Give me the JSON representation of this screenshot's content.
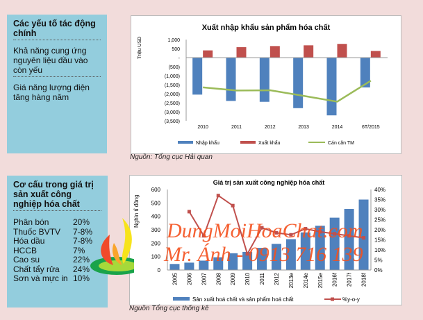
{
  "panel1": {
    "title": "Các yếu tố tác động chính",
    "items": [
      "Khả năng cung ứng nguyên liệu đầu vào còn yếu",
      "Giá năng lượng điện tăng hàng năm"
    ]
  },
  "panel2": {
    "title": "Cơ cấu trong giá trị sản xuất công nghiệp hóa chất",
    "rows": [
      {
        "label": "Phân bón",
        "value": "20%"
      },
      {
        "label": "Thuốc BVTV",
        "value": "7-8%"
      },
      {
        "label": "Hóa dầu",
        "value": "7-8%"
      },
      {
        "label": "HCCB",
        "value": "7%"
      },
      {
        "label": "Cao su",
        "value": "22%"
      },
      {
        "label": "Chất tẩy rửa",
        "value": "24%"
      },
      {
        "label": "Sơn và mực in",
        "value": "10%"
      }
    ]
  },
  "source1": "Nguồn: Tổng cục Hải quan",
  "source2": "Nguồn Tổng cục thống kê",
  "watermark": {
    "line1": "DungMoiHoaChat.com",
    "line2": "Mr. Ánh - 0913 716 139"
  },
  "chart_data": [
    {
      "type": "bar",
      "title": "Xuất nhập khẩu sản phẩm hóa chất",
      "ylabel": "Triệu USD",
      "ylim": [
        -3500,
        1000
      ],
      "yticks": [
        "1,000",
        "500",
        "-",
        "(500)",
        "(1,000)",
        "(1,500)",
        "(2,000)",
        "(2,500)",
        "(3,000)",
        "(3,500)"
      ],
      "categories": [
        "2010",
        "2011",
        "2012",
        "2013",
        "2014",
        "6T/2015"
      ],
      "series": [
        {
          "name": "Nhập khẩu",
          "kind": "bar",
          "color": "#4f81bd",
          "values": [
            -2050,
            -2400,
            -2450,
            -2800,
            -3200,
            -1650
          ]
        },
        {
          "name": "Xuất khẩu",
          "kind": "bar",
          "color": "#c0504d",
          "values": [
            400,
            580,
            640,
            680,
            760,
            370
          ]
        },
        {
          "name": "Cán cân TM",
          "kind": "line",
          "color": "#9bbb59",
          "values": [
            -1650,
            -1820,
            -1810,
            -2120,
            -2440,
            -1280
          ]
        }
      ],
      "legend": "bottom"
    },
    {
      "type": "bar",
      "title": "Giá trị sản xuất công nghiệp hóa chất",
      "ylabel": "Nghìn tỉ đồng",
      "ylim": [
        0,
        600
      ],
      "y2lim": [
        0,
        40
      ],
      "yticks": [
        "0",
        "100",
        "200",
        "300",
        "400",
        "500",
        "600"
      ],
      "y2ticks": [
        "0%",
        "5%",
        "10%",
        "15%",
        "20%",
        "25%",
        "30%",
        "35%",
        "40%"
      ],
      "categories": [
        "2005",
        "2006",
        "2007",
        "2008",
        "2009",
        "2010",
        "2011",
        "2012",
        "2013e",
        "2014e",
        "2015e",
        "2016f",
        "2017f",
        "2018f"
      ],
      "series": [
        {
          "name": "Sản xuất hoá chất và sản phẩm hoá chất",
          "kind": "bar",
          "color": "#4f81bd",
          "values": [
            45,
            55,
            70,
            95,
            125,
            135,
            165,
            195,
            230,
            280,
            330,
            390,
            455,
            525
          ]
        },
        {
          "name": "%y-o-y",
          "kind": "line",
          "axis": "right",
          "color": "#c0504d",
          "values": [
            null,
            29,
            17,
            37,
            32,
            8,
            21,
            18.5,
            17.5,
            20.5,
            19,
            18,
            17,
            16
          ]
        }
      ],
      "legend": "bottom"
    }
  ]
}
